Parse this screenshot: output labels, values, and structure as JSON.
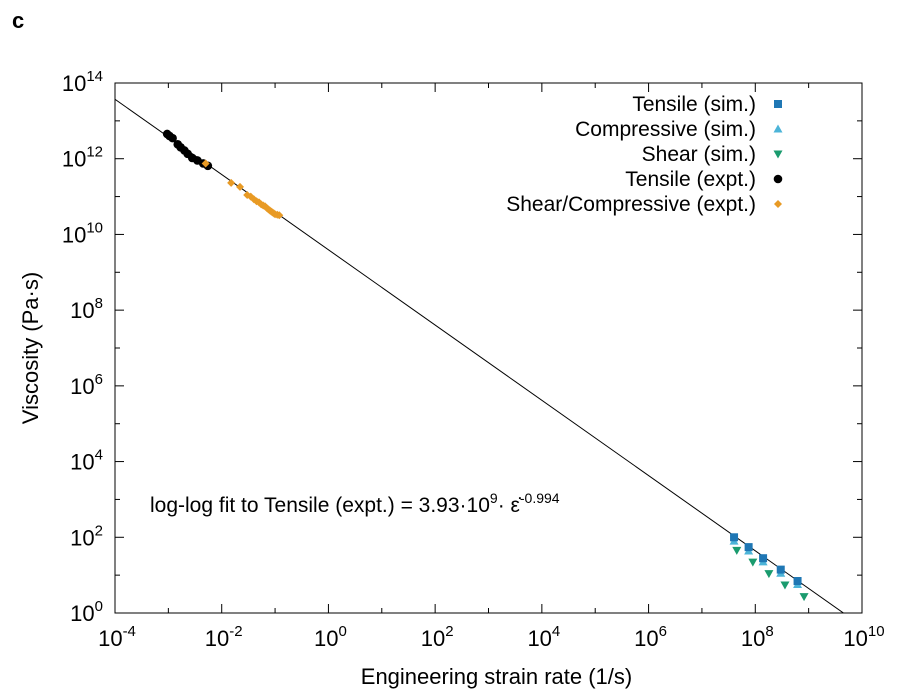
{
  "panel_label": "c",
  "chart_data": {
    "type": "scatter",
    "title": "",
    "xlabel": "Engineering strain rate (1/s)",
    "ylabel": "Viscosity (Pa·s)",
    "xscale": "log",
    "yscale": "log",
    "xlim": [
      0.0001,
      10000000000
    ],
    "ylim": [
      1,
      100000000000000
    ],
    "x_ticks": [
      {
        "value": 0.0001,
        "base": "10",
        "exp": "-4"
      },
      {
        "value": 0.01,
        "base": "10",
        "exp": "-2"
      },
      {
        "value": 1,
        "base": "10",
        "exp": "0"
      },
      {
        "value": 100,
        "base": "10",
        "exp": "2"
      },
      {
        "value": 10000,
        "base": "10",
        "exp": "4"
      },
      {
        "value": 1000000,
        "base": "10",
        "exp": "6"
      },
      {
        "value": 100000000,
        "base": "10",
        "exp": "8"
      },
      {
        "value": 10000000000,
        "base": "10",
        "exp": "10"
      }
    ],
    "y_ticks": [
      {
        "value": 1,
        "base": "10",
        "exp": "0"
      },
      {
        "value": 100,
        "base": "10",
        "exp": "2"
      },
      {
        "value": 10000,
        "base": "10",
        "exp": "4"
      },
      {
        "value": 1000000,
        "base": "10",
        "exp": "6"
      },
      {
        "value": 100000000,
        "base": "10",
        "exp": "8"
      },
      {
        "value": 10000000000,
        "base": "10",
        "exp": "10"
      },
      {
        "value": 1000000000000,
        "base": "10",
        "exp": "12"
      },
      {
        "value": 100000000000000,
        "base": "10",
        "exp": "14"
      }
    ],
    "grid": false,
    "legend_position": "top-right",
    "annotation": {
      "prefix": "log-log fit to Tensile (expt.) = 3.93·10",
      "sup1": "9",
      "middle": "· ε̇",
      "sup2": "-0.994",
      "x": 0.03,
      "y": 200
    },
    "fit_line": {
      "a": 3930000000,
      "b": -0.994,
      "x_start": 0.0001,
      "x_end": 4500000000
    },
    "series": [
      {
        "name": "Tensile (sim.)",
        "marker": "square",
        "color": "#1f77b4",
        "x": [
          40000000,
          75000000,
          140000000,
          300000000,
          620000000
        ],
        "y": [
          100,
          55,
          28,
          14,
          7
        ]
      },
      {
        "name": "Compressive (sim.)",
        "marker": "triangle-up",
        "color": "#4cb4d8",
        "x": [
          40000000,
          75000000,
          140000000,
          300000000,
          620000000
        ],
        "y": [
          95,
          52,
          27,
          13.5,
          6.8
        ]
      },
      {
        "name": "Shear (sim.)",
        "marker": "triangle-down",
        "color": "#1a9b6e",
        "x": [
          45000000,
          90000000,
          180000000,
          360000000,
          820000000
        ],
        "y": [
          45,
          22,
          11,
          5.5,
          2.7
        ]
      },
      {
        "name": "Tensile (expt.)",
        "marker": "circle",
        "color": "#000000",
        "x": [
          0.00095,
          0.00105,
          0.0012,
          0.0015,
          0.0017,
          0.002,
          0.0023,
          0.0028,
          0.0035,
          0.0045,
          0.0055
        ],
        "y": [
          4500000000000,
          4000000000000,
          3500000000000,
          2400000000000,
          2000000000000,
          1650000000000,
          1350000000000,
          1050000000000,
          900000000000,
          750000000000,
          650000000000
        ]
      },
      {
        "name": "Shear/Compressive (expt.)",
        "marker": "diamond",
        "color": "#e89a24",
        "x": [
          0.005,
          0.015,
          0.022,
          0.03,
          0.035,
          0.04,
          0.045,
          0.05,
          0.055,
          0.06,
          0.065,
          0.07,
          0.075,
          0.08,
          0.085,
          0.09,
          0.095,
          0.1,
          0.11,
          0.12
        ],
        "y": [
          750000000000,
          230000000000,
          180000000000,
          110000000000,
          100000000000,
          85000000000,
          75000000000,
          70000000000,
          62000000000,
          58000000000,
          55000000000,
          50000000000,
          46000000000,
          43000000000,
          40000000000,
          38000000000,
          36000000000,
          34000000000,
          33000000000,
          32000000000
        ]
      }
    ]
  }
}
